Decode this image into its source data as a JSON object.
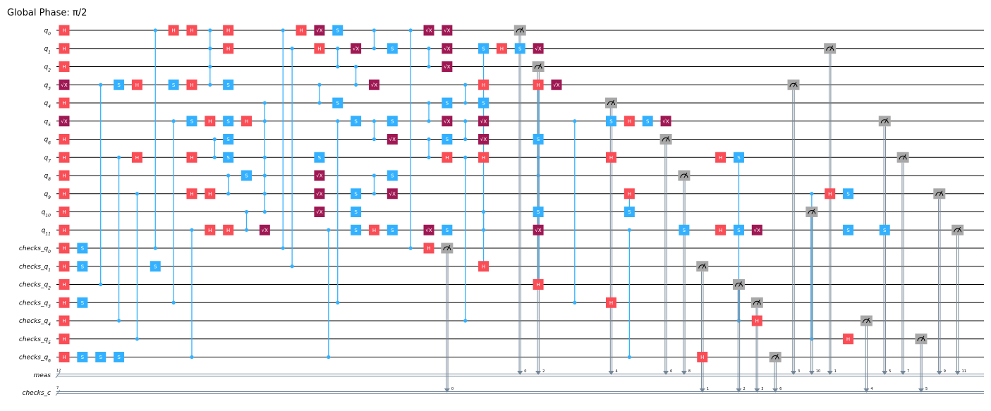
{
  "title": "Global Phase: π/2",
  "colors": {
    "H": "#FA4D56",
    "S": "#33B1FF",
    "SX": "#9F1853",
    "M": "#A8A8A8",
    "ctrl": "#33B1FF",
    "classical": "#778899"
  },
  "quantum_wires": [
    "q_0",
    "q_1",
    "q_2",
    "q_3",
    "q_4",
    "q_5",
    "q_6",
    "q_7",
    "q_8",
    "q_9",
    "q_10",
    "q_11",
    "checks_q_0",
    "checks_q_1",
    "checks_q_2",
    "checks_q_3",
    "checks_q_4",
    "checks_q_5",
    "checks_q_6"
  ],
  "classical_wires": [
    {
      "name": "meas",
      "size": "12"
    },
    {
      "name": "checks_c",
      "size": "7"
    }
  ],
  "labels": {
    "H": "H",
    "S": "S",
    "SX": "√X"
  },
  "gates": [
    {
      "t": "H",
      "w": 0,
      "c": 0
    },
    {
      "t": "H",
      "w": 1,
      "c": 0
    },
    {
      "t": "H",
      "w": 2,
      "c": 0
    },
    {
      "t": "SX",
      "w": 3,
      "c": 0
    },
    {
      "t": "H",
      "w": 4,
      "c": 0
    },
    {
      "t": "SX",
      "w": 5,
      "c": 0
    },
    {
      "t": "H",
      "w": 6,
      "c": 0
    },
    {
      "t": "H",
      "w": 7,
      "c": 0
    },
    {
      "t": "H",
      "w": 8,
      "c": 0
    },
    {
      "t": "H",
      "w": 9,
      "c": 0
    },
    {
      "t": "H",
      "w": 10,
      "c": 0
    },
    {
      "t": "H",
      "w": 11,
      "c": 0
    },
    {
      "t": "H",
      "w": 12,
      "c": 0
    },
    {
      "t": "H",
      "w": 13,
      "c": 0
    },
    {
      "t": "H",
      "w": 14,
      "c": 0
    },
    {
      "t": "H",
      "w": 15,
      "c": 0
    },
    {
      "t": "H",
      "w": 16,
      "c": 0
    },
    {
      "t": "H",
      "w": 17,
      "c": 0
    },
    {
      "t": "H",
      "w": 18,
      "c": 0
    },
    {
      "t": "S",
      "w": 12,
      "c": 1
    },
    {
      "t": "S",
      "w": 13,
      "c": 1
    },
    {
      "t": "S",
      "w": 15,
      "c": 1
    },
    {
      "t": "S",
      "w": 18,
      "c": 1
    },
    {
      "t": "S",
      "w": 18,
      "c": 2
    },
    {
      "t": "S",
      "w": 18,
      "c": 3
    },
    {
      "t": "S",
      "w": 3,
      "c": 3
    },
    {
      "t": "H",
      "w": 3,
      "c": 4
    },
    {
      "t": "H",
      "w": 7,
      "c": 4
    },
    {
      "t": "S",
      "w": 13,
      "c": 5
    },
    {
      "t": "H",
      "w": 0,
      "c": 6
    },
    {
      "t": "S",
      "w": 3,
      "c": 6
    },
    {
      "t": "S",
      "w": 5,
      "c": 7
    },
    {
      "t": "H",
      "w": 0,
      "c": 7
    },
    {
      "t": "H",
      "w": 3,
      "c": 7
    },
    {
      "t": "H",
      "w": 7,
      "c": 7
    },
    {
      "t": "H",
      "w": 9,
      "c": 7
    },
    {
      "t": "H",
      "w": 5,
      "c": 8
    },
    {
      "t": "H",
      "w": 9,
      "c": 8
    },
    {
      "t": "H",
      "w": 11,
      "c": 8
    },
    {
      "t": "H",
      "w": 0,
      "c": 9
    },
    {
      "t": "H",
      "w": 1,
      "c": 9
    },
    {
      "t": "S",
      "w": 3,
      "c": 9
    },
    {
      "t": "S",
      "w": 5,
      "c": 9
    },
    {
      "t": "S",
      "w": 6,
      "c": 9
    },
    {
      "t": "S",
      "w": 7,
      "c": 9
    },
    {
      "t": "H",
      "w": 11,
      "c": 9
    },
    {
      "t": "H",
      "w": 5,
      "c": 10
    },
    {
      "t": "S",
      "w": 8,
      "c": 10
    },
    {
      "t": "SX",
      "w": 11,
      "c": 11
    },
    {
      "t": "H",
      "w": 0,
      "c": 13
    },
    {
      "t": "SX",
      "w": 0,
      "c": 14
    },
    {
      "t": "H",
      "w": 1,
      "c": 14
    },
    {
      "t": "S",
      "w": 7,
      "c": 14
    },
    {
      "t": "SX",
      "w": 8,
      "c": 14
    },
    {
      "t": "SX",
      "w": 9,
      "c": 14
    },
    {
      "t": "SX",
      "w": 10,
      "c": 14
    },
    {
      "t": "S",
      "w": 0,
      "c": 15
    },
    {
      "t": "S",
      "w": 4,
      "c": 15
    },
    {
      "t": "SX",
      "w": 1,
      "c": 16
    },
    {
      "t": "S",
      "w": 5,
      "c": 16
    },
    {
      "t": "S",
      "w": 9,
      "c": 16
    },
    {
      "t": "S",
      "w": 10,
      "c": 16
    },
    {
      "t": "S",
      "w": 11,
      "c": 16
    },
    {
      "t": "SX",
      "w": 3,
      "c": 17
    },
    {
      "t": "H",
      "w": 11,
      "c": 17
    },
    {
      "t": "S",
      "w": 1,
      "c": 18
    },
    {
      "t": "S",
      "w": 5,
      "c": 18
    },
    {
      "t": "SX",
      "w": 6,
      "c": 18
    },
    {
      "t": "S",
      "w": 8,
      "c": 18
    },
    {
      "t": "SX",
      "w": 9,
      "c": 18
    },
    {
      "t": "S",
      "w": 11,
      "c": 18
    },
    {
      "t": "SX",
      "w": 0,
      "c": 20
    },
    {
      "t": "SX",
      "w": 11,
      "c": 20
    },
    {
      "t": "H",
      "w": 12,
      "c": 20
    },
    {
      "t": "SX",
      "w": 0,
      "c": 21
    },
    {
      "t": "SX",
      "w": 1,
      "c": 21
    },
    {
      "t": "SX",
      "w": 2,
      "c": 21
    },
    {
      "t": "S",
      "w": 4,
      "c": 21
    },
    {
      "t": "SX",
      "w": 5,
      "c": 21
    },
    {
      "t": "S",
      "w": 6,
      "c": 21
    },
    {
      "t": "H",
      "w": 7,
      "c": 21
    },
    {
      "t": "S",
      "w": 11,
      "c": 21
    },
    {
      "t": "S",
      "w": 1,
      "c": 23
    },
    {
      "t": "H",
      "w": 3,
      "c": 23
    },
    {
      "t": "S",
      "w": 4,
      "c": 23
    },
    {
      "t": "SX",
      "w": 5,
      "c": 23
    },
    {
      "t": "SX",
      "w": 6,
      "c": 23
    },
    {
      "t": "H",
      "w": 7,
      "c": 23
    },
    {
      "t": "H",
      "w": 13,
      "c": 23
    },
    {
      "t": "H",
      "w": 1,
      "c": 24
    },
    {
      "t": "S",
      "w": 1,
      "c": 25
    },
    {
      "t": "SX",
      "w": 1,
      "c": 26
    },
    {
      "t": "S",
      "w": 6,
      "c": 26
    },
    {
      "t": "S",
      "w": 10,
      "c": 26
    },
    {
      "t": "SX",
      "w": 11,
      "c": 26
    },
    {
      "t": "H",
      "w": 3,
      "c": 26
    },
    {
      "t": "H",
      "w": 14,
      "c": 26
    },
    {
      "t": "SX",
      "w": 3,
      "c": 27
    },
    {
      "t": "S",
      "w": 5,
      "c": 30
    },
    {
      "t": "H",
      "w": 7,
      "c": 30
    },
    {
      "t": "H",
      "w": 15,
      "c": 30
    },
    {
      "t": "H",
      "w": 5,
      "c": 31
    },
    {
      "t": "H",
      "w": 9,
      "c": 31
    },
    {
      "t": "S",
      "w": 10,
      "c": 31
    },
    {
      "t": "S",
      "w": 5,
      "c": 32
    },
    {
      "t": "SX",
      "w": 5,
      "c": 33
    },
    {
      "t": "S",
      "w": 11,
      "c": 34
    },
    {
      "t": "H",
      "w": 18,
      "c": 35
    },
    {
      "t": "H",
      "w": 7,
      "c": 36
    },
    {
      "t": "H",
      "w": 11,
      "c": 36
    },
    {
      "t": "S",
      "w": 7,
      "c": 37
    },
    {
      "t": "S",
      "w": 11,
      "c": 37
    },
    {
      "t": "SX",
      "w": 11,
      "c": 38
    },
    {
      "t": "H",
      "w": 16,
      "c": 38
    },
    {
      "t": "H",
      "w": 9,
      "c": 42
    },
    {
      "t": "S",
      "w": 9,
      "c": 43
    },
    {
      "t": "S",
      "w": 11,
      "c": 43
    },
    {
      "t": "H",
      "w": 17,
      "c": 43
    },
    {
      "t": "S",
      "w": 11,
      "c": 45
    }
  ],
  "controls": [
    {
      "c": 2,
      "w": [
        3,
        14
      ]
    },
    {
      "c": 3,
      "w": [
        7,
        16
      ]
    },
    {
      "c": 4,
      "w": [
        9,
        17
      ]
    },
    {
      "c": 5,
      "w": [
        0,
        12
      ]
    },
    {
      "c": 6,
      "w": [
        5,
        15
      ]
    },
    {
      "c": 7,
      "w": [
        11,
        18
      ]
    },
    {
      "c": 8,
      "w": [
        0,
        1,
        2,
        3
      ]
    },
    {
      "c": 8.25,
      "w": [
        6,
        7
      ]
    },
    {
      "c": 9,
      "w": [
        8,
        9
      ]
    },
    {
      "c": 10,
      "w": [
        10,
        11
      ]
    },
    {
      "c": 11,
      "w": [
        4,
        5,
        7,
        8,
        9,
        10
      ]
    },
    {
      "c": 12,
      "w": [
        0,
        12
      ]
    },
    {
      "c": 12.5,
      "w": [
        1,
        13
      ]
    },
    {
      "c": 14,
      "w": [
        3,
        4
      ]
    },
    {
      "c": 14.5,
      "w": [
        11,
        18
      ]
    },
    {
      "c": 15,
      "w": [
        1,
        2
      ]
    },
    {
      "c": 15,
      "w": [
        5,
        15
      ]
    },
    {
      "c": 16,
      "w": [
        2,
        3
      ]
    },
    {
      "c": 17,
      "w": [
        0,
        1
      ]
    },
    {
      "c": 17,
      "w": [
        5,
        6
      ]
    },
    {
      "c": 17,
      "w": [
        8,
        9
      ]
    },
    {
      "c": 19,
      "w": [
        0,
        12
      ]
    },
    {
      "c": 20,
      "w": [
        1,
        2
      ]
    },
    {
      "c": 20,
      "w": [
        4,
        5
      ]
    },
    {
      "c": 20,
      "w": [
        6,
        7
      ]
    },
    {
      "c": 22,
      "w": [
        3,
        4
      ]
    },
    {
      "c": 22,
      "w": [
        5,
        6
      ]
    },
    {
      "c": 22,
      "w": [
        7,
        16
      ]
    },
    {
      "c": 23,
      "w": [
        1,
        13
      ]
    },
    {
      "c": 23,
      "w": [
        10,
        11
      ]
    },
    {
      "c": 26,
      "w": [
        3,
        14
      ]
    },
    {
      "c": 26,
      "w": [
        7,
        8
      ]
    },
    {
      "c": 28,
      "w": [
        5,
        15
      ]
    },
    {
      "c": 31,
      "w": [
        9,
        10
      ]
    },
    {
      "c": 31,
      "w": [
        11,
        18
      ]
    },
    {
      "c": 37,
      "w": [
        7,
        16
      ]
    },
    {
      "c": 41,
      "w": [
        9,
        17
      ]
    }
  ],
  "measurements": [
    {
      "w": 0,
      "c": 25,
      "reg": 0,
      "bit": "0"
    },
    {
      "w": 2,
      "c": 26,
      "reg": 0,
      "bit": "2"
    },
    {
      "w": 4,
      "c": 30,
      "reg": 0,
      "bit": "4"
    },
    {
      "w": 12,
      "c": 21,
      "reg": 1,
      "bit": "0"
    },
    {
      "w": 6,
      "c": 33,
      "reg": 0,
      "bit": "6"
    },
    {
      "w": 8,
      "c": 34,
      "reg": 0,
      "bit": "8"
    },
    {
      "w": 13,
      "c": 35,
      "reg": 1,
      "bit": "1"
    },
    {
      "w": 14,
      "c": 37,
      "reg": 1,
      "bit": "2"
    },
    {
      "w": 15,
      "c": 38,
      "reg": 1,
      "bit": "3"
    },
    {
      "w": 18,
      "c": 39,
      "reg": 1,
      "bit": "6"
    },
    {
      "w": 3,
      "c": 40,
      "reg": 0,
      "bit": "3"
    },
    {
      "w": 10,
      "c": 41,
      "reg": 0,
      "bit": "10"
    },
    {
      "w": 1,
      "c": 42,
      "reg": 0,
      "bit": "1"
    },
    {
      "w": 16,
      "c": 44,
      "reg": 1,
      "bit": "4"
    },
    {
      "w": 5,
      "c": 45,
      "reg": 0,
      "bit": "5"
    },
    {
      "w": 7,
      "c": 46,
      "reg": 0,
      "bit": "7"
    },
    {
      "w": 17,
      "c": 47,
      "reg": 1,
      "bit": "5"
    },
    {
      "w": 9,
      "c": 48,
      "reg": 0,
      "bit": "9"
    },
    {
      "w": 11,
      "c": 49,
      "reg": 0,
      "bit": "11"
    }
  ]
}
